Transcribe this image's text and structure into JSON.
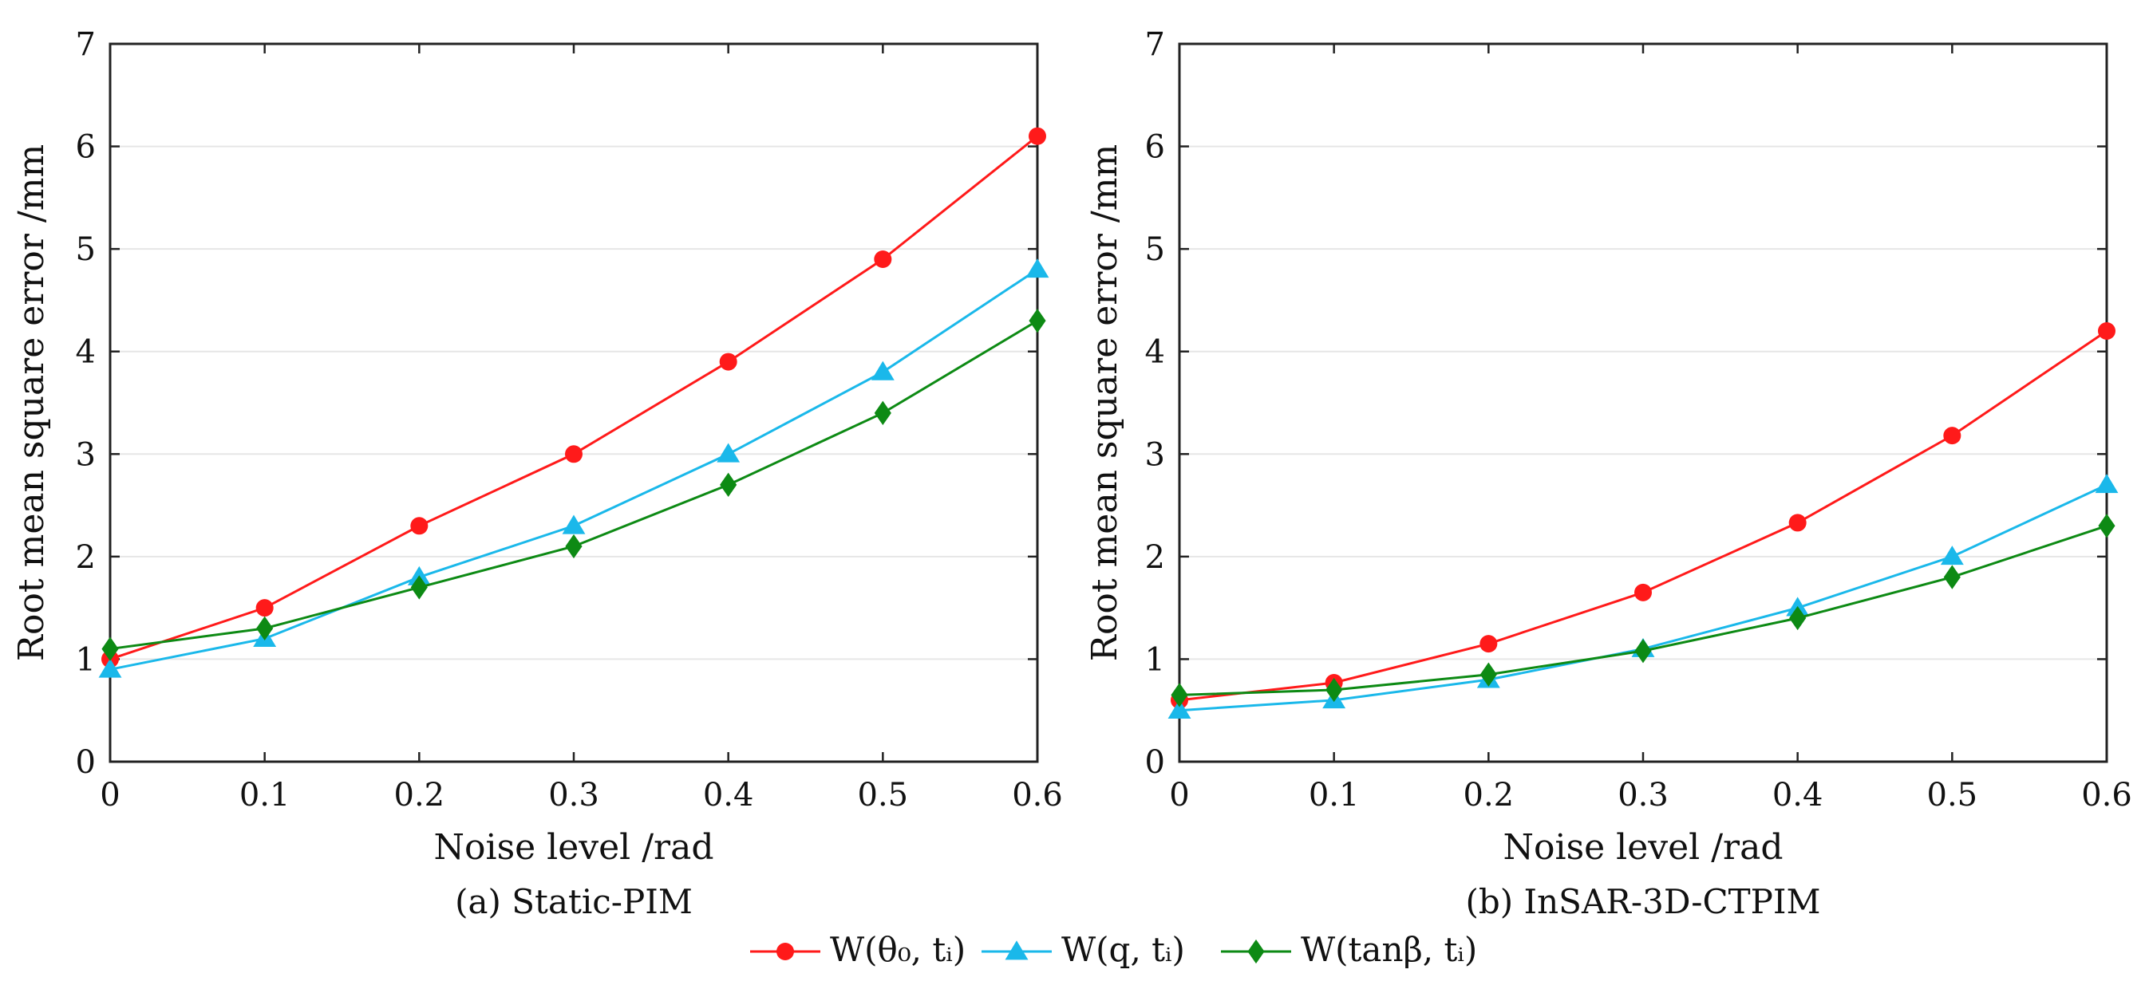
{
  "chart_data": [
    {
      "type": "line",
      "caption": "(a)  Static-PIM",
      "xlabel": "Noise level /rad",
      "ylabel": "Root mean square error /mm",
      "xlim": [
        0,
        0.6
      ],
      "ylim": [
        0,
        7
      ],
      "grid": "horizontal",
      "x": [
        0,
        0.1,
        0.2,
        0.3,
        0.4,
        0.5,
        0.6
      ],
      "x_tick_labels": [
        "0",
        "0.1",
        "0.2",
        "0.3",
        "0.4",
        "0.5",
        "0.6"
      ],
      "y_ticks": [
        0,
        1,
        2,
        3,
        4,
        5,
        6,
        7
      ],
      "y_tick_labels": [
        "0",
        "1",
        "2",
        "3",
        "4",
        "5",
        "6",
        "7"
      ],
      "series": [
        {
          "name": "W(θ₀, tᵢ)",
          "color": "#ff1a1a",
          "marker": "circle",
          "values": [
            1.0,
            1.5,
            2.3,
            3.0,
            3.9,
            4.9,
            6.1
          ]
        },
        {
          "name": "W(q, tᵢ)",
          "color": "#1ab8ea",
          "marker": "triangle",
          "values": [
            0.9,
            1.2,
            1.8,
            2.3,
            3.0,
            3.8,
            4.8
          ]
        },
        {
          "name": "W(tanβ, tᵢ)",
          "color": "#0d8a14",
          "marker": "diamond",
          "values": [
            1.1,
            1.3,
            1.7,
            2.1,
            2.7,
            3.4,
            4.3
          ]
        }
      ]
    },
    {
      "type": "line",
      "caption": "(b)  InSAR-3D-CTPIM",
      "xlabel": "Noise level /rad",
      "ylabel": "Root mean square error /mm",
      "xlim": [
        0,
        0.6
      ],
      "ylim": [
        0,
        7
      ],
      "grid": "horizontal",
      "x": [
        0,
        0.1,
        0.2,
        0.3,
        0.4,
        0.5,
        0.6
      ],
      "x_tick_labels": [
        "0",
        "0.1",
        "0.2",
        "0.3",
        "0.4",
        "0.5",
        "0.6"
      ],
      "y_ticks": [
        0,
        1,
        2,
        3,
        4,
        5,
        6,
        7
      ],
      "y_tick_labels": [
        "0",
        "1",
        "2",
        "3",
        "4",
        "5",
        "6",
        "7"
      ],
      "series": [
        {
          "name": "W(θ₀, tᵢ)",
          "color": "#ff1a1a",
          "marker": "circle",
          "values": [
            0.6,
            0.77,
            1.15,
            1.65,
            2.33,
            3.18,
            4.2
          ]
        },
        {
          "name": "W(q, tᵢ)",
          "color": "#1ab8ea",
          "marker": "triangle",
          "values": [
            0.5,
            0.6,
            0.8,
            1.1,
            1.5,
            2.0,
            2.7
          ]
        },
        {
          "name": "W(tanβ, tᵢ)",
          "color": "#0d8a14",
          "marker": "diamond",
          "values": [
            0.65,
            0.7,
            0.85,
            1.08,
            1.4,
            1.8,
            2.3
          ]
        }
      ]
    }
  ],
  "legend": {
    "placement": "bottom-center",
    "items": [
      {
        "label": "W(θ₀, tᵢ)",
        "color": "#ff1a1a",
        "marker": "circle"
      },
      {
        "label": "W(q, tᵢ)",
        "color": "#1ab8ea",
        "marker": "triangle"
      },
      {
        "label": "W(tanβ, tᵢ)",
        "color": "#0d8a14",
        "marker": "diamond"
      }
    ]
  }
}
